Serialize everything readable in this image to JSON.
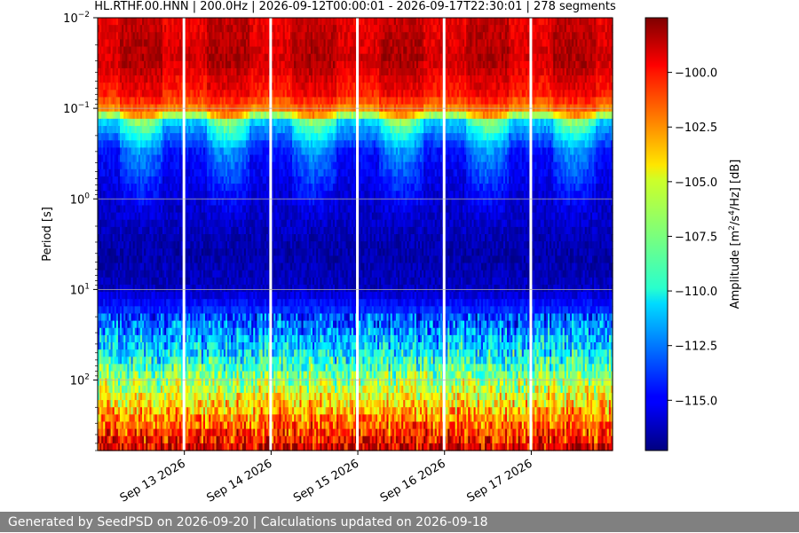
{
  "chart_data": {
    "type": "heatmap",
    "title": "HL.RTHF.00.HNN | 200.0Hz | 2026-09-12T00:00:01 - 2026-09-17T22:30:01 | 278 segments",
    "ylabel": "Period [s]",
    "yscale": "log",
    "yinverted": true,
    "ylim": [
      0.01,
      600
    ],
    "yticks": [
      {
        "value": 0.01,
        "base": "10",
        "exp": "−2"
      },
      {
        "value": 0.1,
        "base": "10",
        "exp": "−1"
      },
      {
        "value": 1,
        "base": "10",
        "exp": "0"
      },
      {
        "value": 10,
        "base": "10",
        "exp": "1"
      },
      {
        "value": 100,
        "base": "10",
        "exp": "2"
      }
    ],
    "xlim": [
      "2026-09-12T00:00:01",
      "2026-09-17T22:30:01"
    ],
    "xticks": [
      {
        "date": "2026-09-13",
        "label": "Sep 13 2026"
      },
      {
        "date": "2026-09-14",
        "label": "Sep 14 2026"
      },
      {
        "date": "2026-09-15",
        "label": "Sep 15 2026"
      },
      {
        "date": "2026-09-16",
        "label": "Sep 16 2026"
      },
      {
        "date": "2026-09-17",
        "label": "Sep 17 2026"
      }
    ],
    "gaps": [
      "2026-09-13",
      "2026-09-14",
      "2026-09-15",
      "2026-09-16",
      "2026-09-17"
    ],
    "grid": true,
    "colormap": "jet",
    "colorbar": {
      "label_prefix": "Amplitude [m",
      "label_exp1": "2",
      "label_mid": "/s",
      "label_exp2": "4",
      "label_suffix": "/Hz] [dB]",
      "range": [
        -117.3,
        -97.5
      ],
      "ticks": [
        {
          "value": -100,
          "label": "−100.0"
        },
        {
          "value": -102.5,
          "label": "−102.5"
        },
        {
          "value": -105,
          "label": "−105.0"
        },
        {
          "value": -107.5,
          "label": "−107.5"
        },
        {
          "value": -110,
          "label": "−110.0"
        },
        {
          "value": -112.5,
          "label": "−112.5"
        },
        {
          "value": -115,
          "label": "−115.0"
        }
      ]
    },
    "profile": [
      {
        "period": 0.01,
        "db": -98.5
      },
      {
        "period": 0.03,
        "db": -98.0
      },
      {
        "period": 0.07,
        "db": -99.5
      },
      {
        "period": 0.1,
        "db": -101.5
      },
      {
        "period": 0.14,
        "db": -110.0
      },
      {
        "period": 0.3,
        "db": -114.0
      },
      {
        "period": 1,
        "db": -115.5
      },
      {
        "period": 4,
        "db": -116.5
      },
      {
        "period": 10,
        "db": -116.0
      },
      {
        "period": 30,
        "db": -112.0
      },
      {
        "period": 60,
        "db": -109.5
      },
      {
        "period": 100,
        "db": -107.0
      },
      {
        "period": 200,
        "db": -104.0
      },
      {
        "period": 600,
        "db": -99.0
      }
    ],
    "daytime_hours": [
      6,
      18
    ]
  },
  "footer": {
    "text": "Generated by SeedPSD on 2026-09-20 | Calculations updated on 2026-09-18"
  }
}
